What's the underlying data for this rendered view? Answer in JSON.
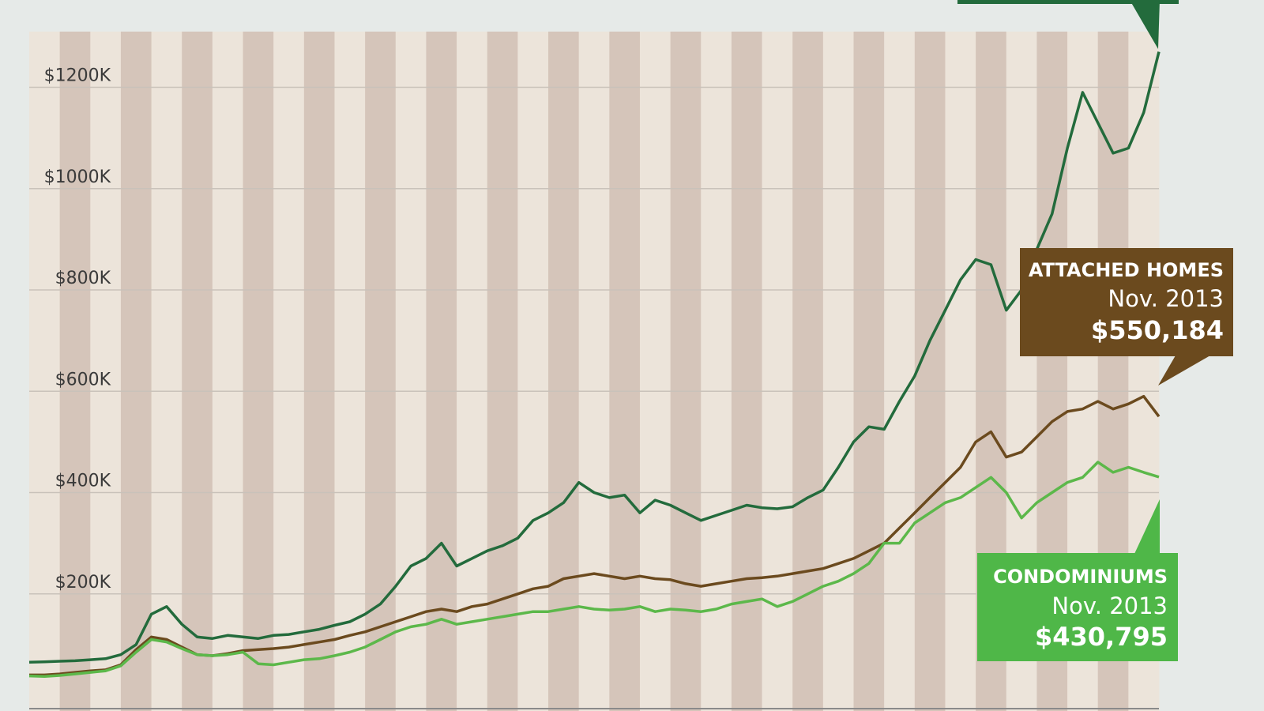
{
  "chart_data": {
    "type": "line",
    "categories": [
      null,
      null,
      null,
      null,
      null,
      null,
      null,
      null,
      null,
      null,
      null,
      null,
      null,
      null,
      null,
      null,
      null,
      null,
      null,
      null,
      null,
      null,
      null,
      null,
      null,
      null,
      null,
      null,
      null,
      null,
      null,
      null,
      null,
      null,
      null,
      null,
      null,
      null,
      null,
      null,
      null,
      null,
      null,
      null,
      null,
      null,
      null,
      null,
      null,
      null,
      null,
      null,
      null,
      null,
      null,
      null,
      null,
      null,
      null,
      null,
      null,
      null,
      null,
      null,
      null,
      null,
      null,
      null,
      null,
      null,
      null,
      null,
      null,
      null,
      "Nov. 2013"
    ],
    "series": [
      {
        "color": "#236b3c",
        "values": [
          65,
          66,
          67,
          68,
          70,
          72,
          80,
          100,
          160,
          175,
          140,
          115,
          112,
          118,
          115,
          112,
          118,
          120,
          125,
          130,
          138,
          145,
          160,
          180,
          215,
          255,
          270,
          300,
          255,
          270,
          285,
          295,
          310,
          345,
          360,
          380,
          420,
          400,
          390,
          395,
          360,
          385,
          375,
          360,
          345,
          355,
          365,
          375,
          370,
          368,
          372,
          390,
          405,
          450,
          500,
          530,
          525,
          580,
          630,
          700,
          760,
          820,
          860,
          850,
          760,
          800,
          880,
          950,
          1080,
          1190,
          1130,
          1070,
          1080,
          1150,
          1270
        ]
      },
      {
        "name": "ATTACHED HOMES",
        "color": "#6b4a1e",
        "values": [
          40,
          40,
          42,
          45,
          48,
          50,
          60,
          90,
          115,
          110,
          95,
          80,
          78,
          82,
          88,
          90,
          92,
          95,
          100,
          105,
          110,
          118,
          125,
          135,
          145,
          155,
          165,
          170,
          165,
          175,
          180,
          190,
          200,
          210,
          215,
          230,
          235,
          240,
          235,
          230,
          235,
          230,
          228,
          220,
          215,
          220,
          225,
          230,
          232,
          235,
          240,
          245,
          250,
          260,
          270,
          285,
          300,
          330,
          360,
          390,
          420,
          450,
          500,
          520,
          470,
          480,
          510,
          540,
          560,
          565,
          580,
          565,
          575,
          590,
          550.184
        ],
        "value_labels": [
          null,
          null,
          null,
          null,
          null,
          null,
          null,
          null,
          null,
          null,
          null,
          null,
          null,
          null,
          null,
          null,
          null,
          null,
          null,
          null,
          null,
          null,
          null,
          null,
          null,
          null,
          null,
          null,
          null,
          null,
          null,
          null,
          null,
          null,
          null,
          null,
          null,
          null,
          null,
          null,
          null,
          null,
          null,
          null,
          null,
          null,
          null,
          null,
          null,
          null,
          null,
          null,
          null,
          null,
          null,
          null,
          null,
          null,
          null,
          null,
          null,
          null,
          null,
          null,
          null,
          null,
          null,
          null,
          null,
          null,
          null,
          null,
          null,
          null,
          "$550,184"
        ]
      },
      {
        "name": "CONDOMINIUMS",
        "color": "#5cb84a",
        "values": [
          38,
          37,
          39,
          42,
          45,
          48,
          58,
          85,
          110,
          105,
          92,
          80,
          78,
          80,
          85,
          62,
          60,
          65,
          70,
          72,
          78,
          85,
          95,
          110,
          125,
          135,
          140,
          150,
          140,
          145,
          150,
          155,
          160,
          165,
          165,
          170,
          175,
          170,
          168,
          170,
          175,
          165,
          170,
          168,
          165,
          170,
          180,
          185,
          190,
          175,
          185,
          200,
          215,
          225,
          240,
          260,
          300,
          300,
          340,
          360,
          380,
          390,
          410,
          430,
          400,
          350,
          380,
          400,
          420,
          430,
          460,
          440,
          450,
          440,
          430.795
        ],
        "value_labels": [
          null,
          null,
          null,
          null,
          null,
          null,
          null,
          null,
          null,
          null,
          null,
          null,
          null,
          null,
          null,
          null,
          null,
          null,
          null,
          null,
          null,
          null,
          null,
          null,
          null,
          null,
          null,
          null,
          null,
          null,
          null,
          null,
          null,
          null,
          null,
          null,
          null,
          null,
          null,
          null,
          null,
          null,
          null,
          null,
          null,
          null,
          null,
          null,
          null,
          null,
          null,
          null,
          null,
          null,
          null,
          null,
          null,
          null,
          null,
          null,
          null,
          null,
          null,
          null,
          null,
          null,
          null,
          null,
          null,
          null,
          null,
          null,
          null,
          null,
          "$430,795"
        ]
      }
    ],
    "ylim": [
      0,
      1310
    ],
    "yticks": [
      {
        "value": 200,
        "label": "$200K"
      },
      {
        "value": 400,
        "label": "$400K"
      },
      {
        "value": 600,
        "label": "$600K"
      },
      {
        "value": 800,
        "label": "$800K"
      },
      {
        "value": 1000,
        "label": "$1000K"
      },
      {
        "value": 1200,
        "label": "$1200K"
      }
    ],
    "grid": true
  }
}
